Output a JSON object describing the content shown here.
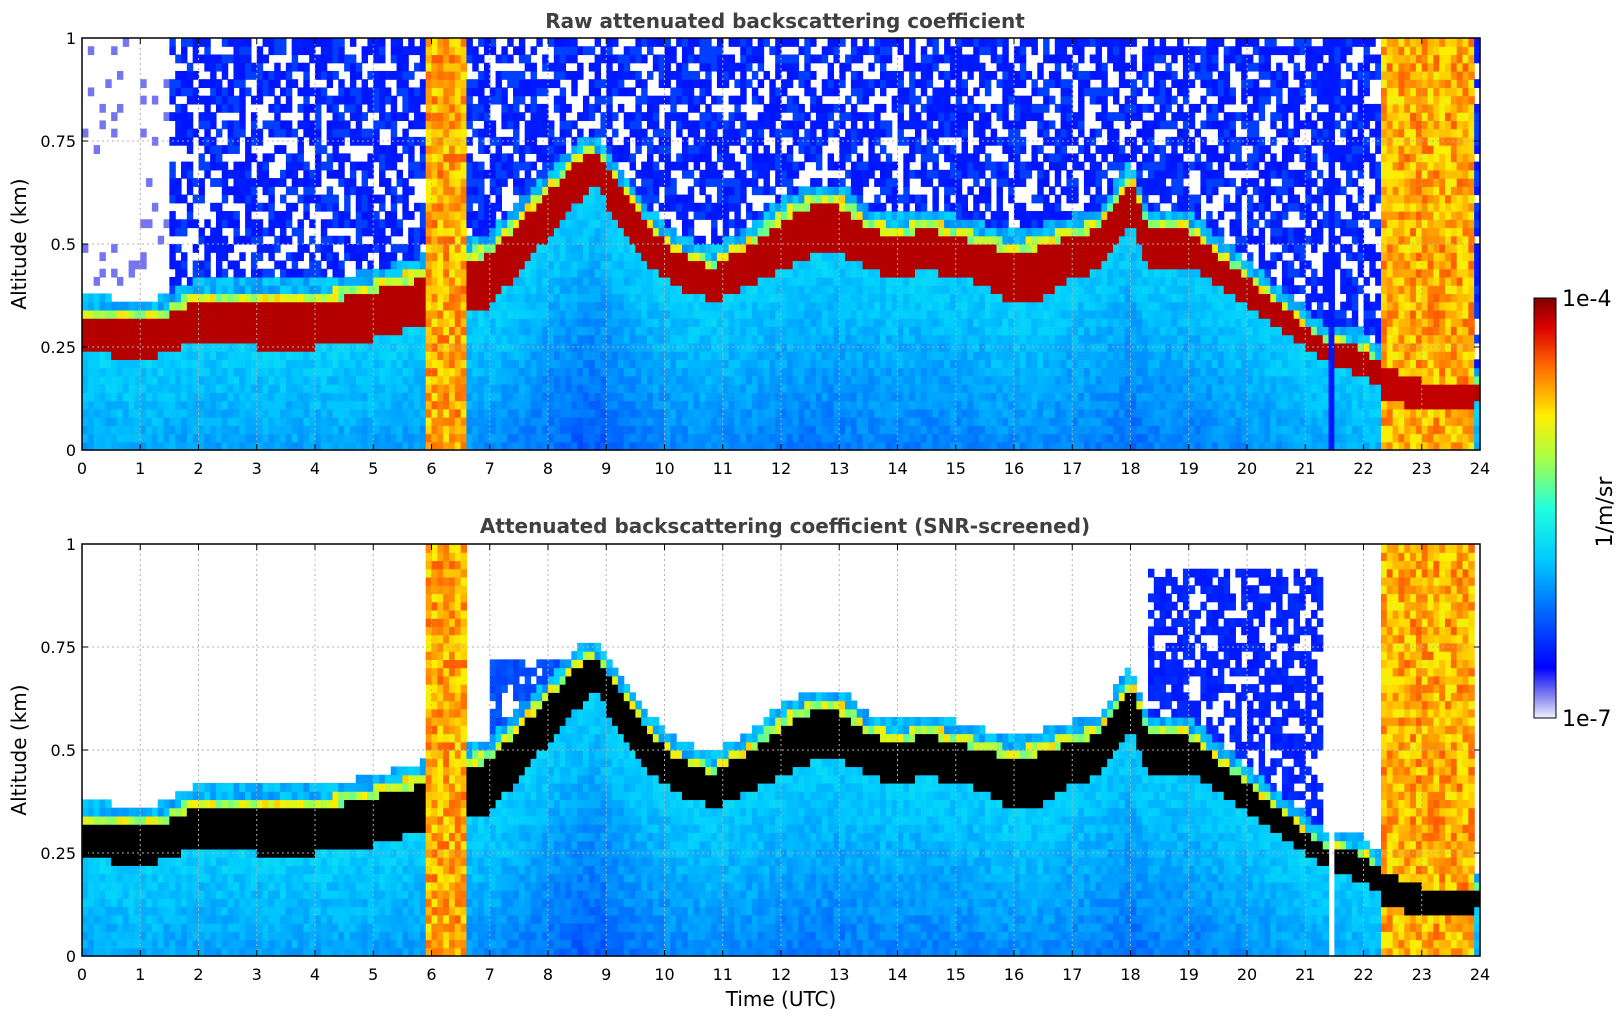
{
  "chart_data": [
    {
      "type": "heatmap",
      "title": "Raw attenuated backscattering coefficient",
      "ylabel": "Altitude (km)",
      "xlabel": "",
      "xlim": [
        0,
        24
      ],
      "ylim": [
        0,
        1
      ],
      "xticks": [
        "0",
        "1",
        "2",
        "3",
        "4",
        "5",
        "6",
        "7",
        "8",
        "9",
        "10",
        "11",
        "12",
        "13",
        "14",
        "15",
        "16",
        "17",
        "18",
        "19",
        "20",
        "21",
        "22",
        "23",
        "24"
      ],
      "yticks": [
        "0",
        "0.25",
        "0.5",
        "0.75",
        "1"
      ],
      "grid": true,
      "screened": false
    },
    {
      "type": "heatmap",
      "title": "Attenuated backscattering coefficient (SNR-screened)",
      "ylabel": "Altitude (km)",
      "xlabel": "Time (UTC)",
      "xlim": [
        0,
        24
      ],
      "ylim": [
        0,
        1
      ],
      "xticks": [
        "0",
        "1",
        "2",
        "3",
        "4",
        "5",
        "6",
        "7",
        "8",
        "9",
        "10",
        "11",
        "12",
        "13",
        "14",
        "15",
        "16",
        "17",
        "18",
        "19",
        "20",
        "21",
        "22",
        "23",
        "24"
      ],
      "yticks": [
        "0",
        "0.25",
        "0.5",
        "0.75",
        "1"
      ],
      "grid": true,
      "screened": true
    }
  ],
  "colorbar": {
    "label": "1/m/sr",
    "max_label": "1e-4",
    "min_label": "1e-7",
    "scale": "log",
    "range": [
      1e-07,
      0.0001
    ]
  },
  "layer_profile": {
    "description_units": "time in hours UTC, altitude in km",
    "cloud_base": [
      [
        0,
        0.24
      ],
      [
        0.5,
        0.23
      ],
      [
        1,
        0.22
      ],
      [
        1.5,
        0.24
      ],
      [
        2,
        0.27
      ],
      [
        3,
        0.25
      ],
      [
        4,
        0.25
      ],
      [
        5,
        0.27
      ],
      [
        5.8,
        0.3
      ],
      [
        6.5,
        0.33
      ],
      [
        7,
        0.35
      ],
      [
        8.5,
        0.6
      ],
      [
        8.8,
        0.65
      ],
      [
        9.2,
        0.55
      ],
      [
        9.7,
        0.45
      ],
      [
        10.2,
        0.4
      ],
      [
        10.8,
        0.36
      ],
      [
        11.5,
        0.4
      ],
      [
        12,
        0.44
      ],
      [
        12.5,
        0.47
      ],
      [
        13,
        0.48
      ],
      [
        13.5,
        0.44
      ],
      [
        14,
        0.42
      ],
      [
        14.5,
        0.44
      ],
      [
        15,
        0.42
      ],
      [
        15.5,
        0.4
      ],
      [
        16,
        0.35
      ],
      [
        16.5,
        0.37
      ],
      [
        17,
        0.42
      ],
      [
        17.5,
        0.44
      ],
      [
        18,
        0.55
      ],
      [
        18.3,
        0.45
      ],
      [
        19,
        0.45
      ],
      [
        21.3,
        0.22
      ],
      [
        22,
        0.18
      ],
      [
        22.4,
        0.14
      ],
      [
        23,
        0.12
      ],
      [
        23.8,
        0.12
      ],
      [
        24,
        0.12
      ]
    ],
    "cloud_top": [
      [
        0,
        0.35
      ],
      [
        0.5,
        0.34
      ],
      [
        1,
        0.33
      ],
      [
        1.5,
        0.35
      ],
      [
        2,
        0.39
      ],
      [
        3,
        0.38
      ],
      [
        4,
        0.38
      ],
      [
        5,
        0.41
      ],
      [
        5.8,
        0.44
      ],
      [
        6.5,
        0.48
      ],
      [
        7,
        0.5
      ],
      [
        8.5,
        0.72
      ],
      [
        8.8,
        0.74
      ],
      [
        9.2,
        0.66
      ],
      [
        9.7,
        0.56
      ],
      [
        10.2,
        0.5
      ],
      [
        10.8,
        0.46
      ],
      [
        11.5,
        0.52
      ],
      [
        12,
        0.58
      ],
      [
        12.5,
        0.62
      ],
      [
        13,
        0.62
      ],
      [
        13.5,
        0.56
      ],
      [
        14,
        0.54
      ],
      [
        14.5,
        0.56
      ],
      [
        15,
        0.54
      ],
      [
        15.5,
        0.52
      ],
      [
        16,
        0.5
      ],
      [
        16.5,
        0.52
      ],
      [
        17,
        0.54
      ],
      [
        17.5,
        0.56
      ],
      [
        18,
        0.68
      ],
      [
        18.3,
        0.55
      ],
      [
        19,
        0.55
      ],
      [
        21.3,
        0.28
      ],
      [
        22,
        0.26
      ],
      [
        22.4,
        0.2
      ],
      [
        23,
        0.17
      ],
      [
        23.8,
        0.17
      ],
      [
        24,
        0.17
      ]
    ],
    "rain_columns": [
      [
        5.95,
        6.6
      ],
      [
        22.3,
        23.85
      ]
    ],
    "instrument_off": [
      [
        21.45,
        21.5
      ]
    ]
  }
}
